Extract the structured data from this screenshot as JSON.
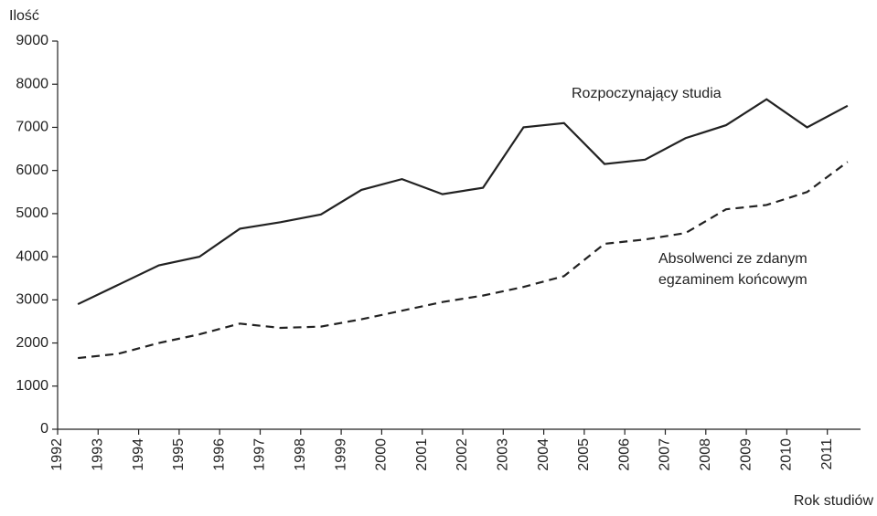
{
  "chart_data": {
    "type": "line",
    "y_label": "Ilość",
    "x_label": "Rok studiów",
    "annotations": [
      "Rozpoczynający studia",
      "Absolwenci ze zdanym",
      "egzaminem końcowym"
    ],
    "x": [
      1992.5,
      1993.5,
      1994.5,
      1995.5,
      1996.5,
      1997.5,
      1998.5,
      1999.5,
      2000.5,
      2001.5,
      2002.5,
      2003.5,
      2004.5,
      2005.5,
      2006.5,
      2007.5,
      2008.5,
      2009.5,
      2010.5,
      2011.5
    ],
    "series": [
      {
        "color": "#222222",
        "dash": "solid",
        "values": [
          2900,
          3350,
          3800,
          4000,
          4650,
          4800,
          4980,
          5550,
          5800,
          5450,
          5600,
          7000,
          7100,
          6150,
          6250,
          6750,
          7050,
          7650,
          7000,
          7500
        ]
      },
      {
        "color": "#222222",
        "dash": "dashed",
        "values": [
          1650,
          1750,
          2000,
          2200,
          2450,
          2350,
          2380,
          2550,
          2750,
          2950,
          3100,
          3300,
          3550,
          4300,
          4400,
          4550,
          5100,
          5200,
          5500,
          6200
        ]
      }
    ],
    "xlim": [
      1992,
      2012
    ],
    "xticks": [
      1992,
      1993,
      1994,
      1995,
      1996,
      1997,
      1998,
      1999,
      2000,
      2001,
      2002,
      2003,
      2004,
      2005,
      2006,
      2007,
      2008,
      2009,
      2010,
      2011
    ],
    "ylim": [
      0,
      9000
    ],
    "yticks": [
      0,
      1000,
      2000,
      3000,
      4000,
      5000,
      6000,
      7000,
      8000,
      9000
    ],
    "grid": false
  }
}
